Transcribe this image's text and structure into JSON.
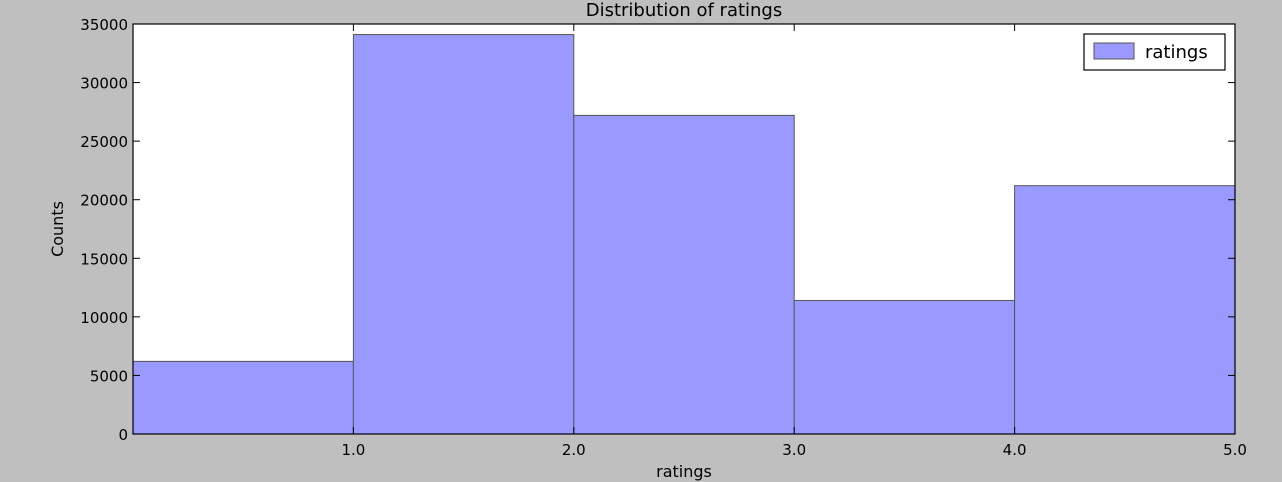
{
  "chart_data": {
    "type": "bar",
    "title": "Distribution of ratings",
    "xlabel": "ratings",
    "ylabel": "Counts",
    "bins": [
      {
        "start": 0.0,
        "end": 1.0,
        "value": 6200
      },
      {
        "start": 1.0,
        "end": 2.0,
        "value": 34100
      },
      {
        "start": 2.0,
        "end": 3.0,
        "value": 27200
      },
      {
        "start": 3.0,
        "end": 4.0,
        "value": 11400
      },
      {
        "start": 4.0,
        "end": 5.0,
        "value": 21200
      }
    ],
    "xlim": [
      0.0,
      5.0
    ],
    "ylim": [
      0,
      35000
    ],
    "xticks": [
      1.0,
      2.0,
      3.0,
      4.0,
      5.0
    ],
    "xtick_labels": [
      "1.0",
      "2.0",
      "3.0",
      "4.0",
      "5.0"
    ],
    "yticks": [
      0,
      5000,
      10000,
      15000,
      20000,
      25000,
      30000,
      35000
    ],
    "ytick_labels": [
      "0",
      "5000",
      "10000",
      "15000",
      "20000",
      "25000",
      "30000",
      "35000"
    ],
    "legend": {
      "placement": "top-right",
      "entries": [
        "ratings"
      ]
    },
    "grid": false,
    "colors": {
      "bar_fill": "#9999ff",
      "bar_edge": "#555555",
      "plot_bg": "#ffffff",
      "figure_bg": "#bfbfbf"
    }
  }
}
